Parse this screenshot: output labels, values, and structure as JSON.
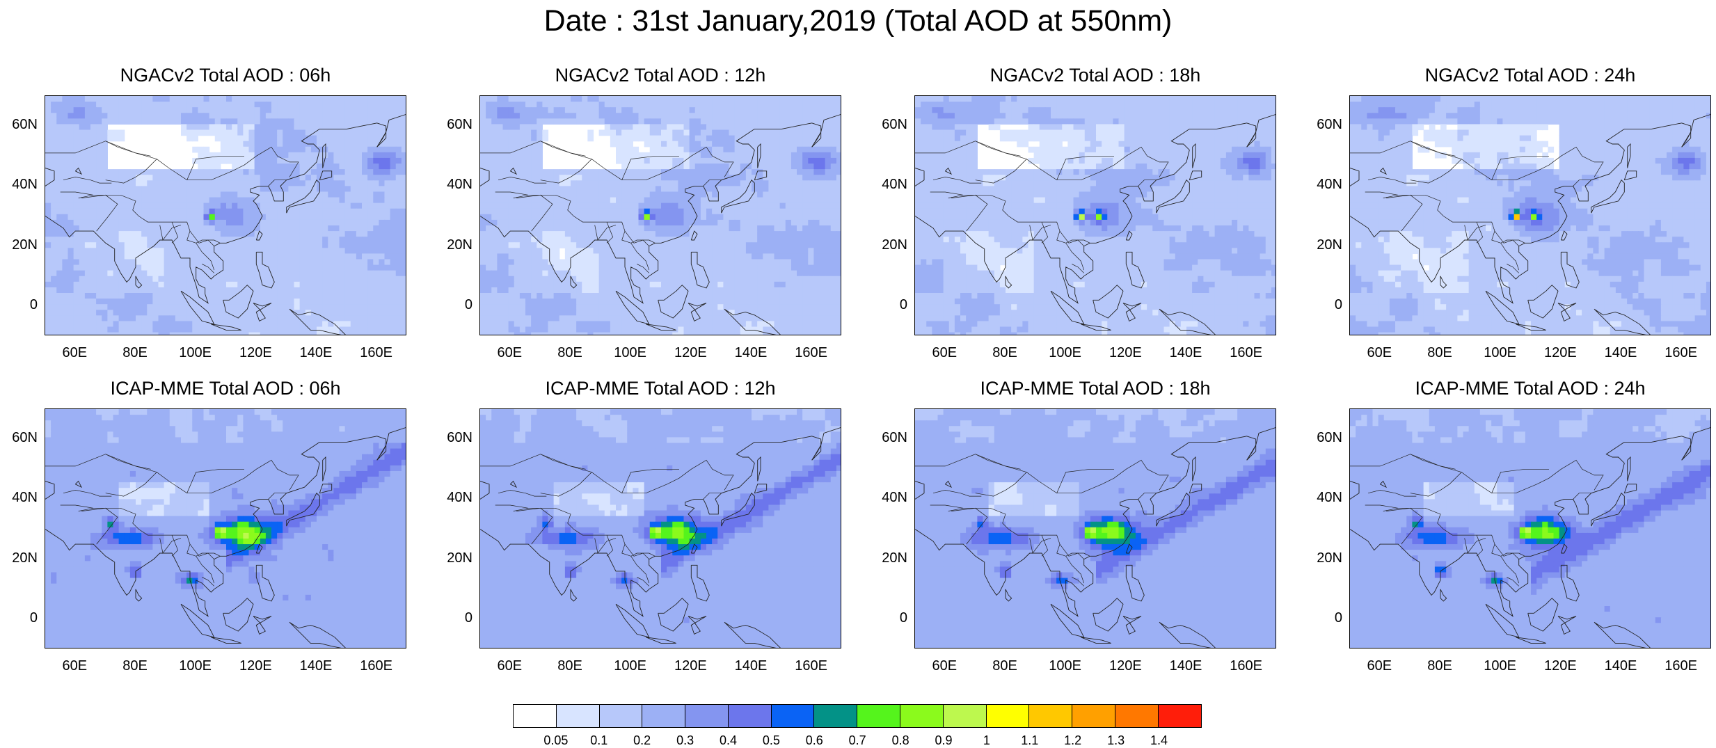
{
  "figure": {
    "title": "Date : 31st January,2019 (Total AOD at 550nm)"
  },
  "panels": [
    {
      "title": "NGACv2 Total AOD : 06h",
      "model": "NGACv2",
      "hour": "06h"
    },
    {
      "title": "NGACv2 Total AOD : 12h",
      "model": "NGACv2",
      "hour": "12h"
    },
    {
      "title": "NGACv2 Total AOD : 18h",
      "model": "NGACv2",
      "hour": "18h"
    },
    {
      "title": "NGACv2 Total AOD : 24h",
      "model": "NGACv2",
      "hour": "24h"
    },
    {
      "title": "ICAP-MME Total AOD : 06h",
      "model": "ICAP-MME",
      "hour": "06h"
    },
    {
      "title": "ICAP-MME Total AOD : 12h",
      "model": "ICAP-MME",
      "hour": "12h"
    },
    {
      "title": "ICAP-MME Total AOD : 18h",
      "model": "ICAP-MME",
      "hour": "18h"
    },
    {
      "title": "ICAP-MME Total AOD : 24h",
      "model": "ICAP-MME",
      "hour": "24h"
    }
  ],
  "axes": {
    "lat_ticks": [
      "60N",
      "40N",
      "20N",
      "0"
    ],
    "lon_ticks": [
      "60E",
      "80E",
      "100E",
      "120E",
      "140E",
      "160E"
    ],
    "lat_range": [
      -10,
      70
    ],
    "lon_range": [
      50,
      170
    ]
  },
  "colorbar": {
    "labels": [
      "0.05",
      "0.1",
      "0.2",
      "0.3",
      "0.4",
      "0.5",
      "0.6",
      "0.7",
      "0.8",
      "0.9",
      "1",
      "1.1",
      "1.2",
      "1.3",
      "1.4"
    ],
    "colors": [
      "#ffffff",
      "#d8e4ff",
      "#b7c8fa",
      "#9cb0f5",
      "#8495f0",
      "#6c76ec",
      "#0a63f5",
      "#039287",
      "#55f41c",
      "#8bfa1c",
      "#bdf84e",
      "#ffff00",
      "#ffc800",
      "#ffa000",
      "#ff7800",
      "#ff1e0a"
    ]
  }
}
